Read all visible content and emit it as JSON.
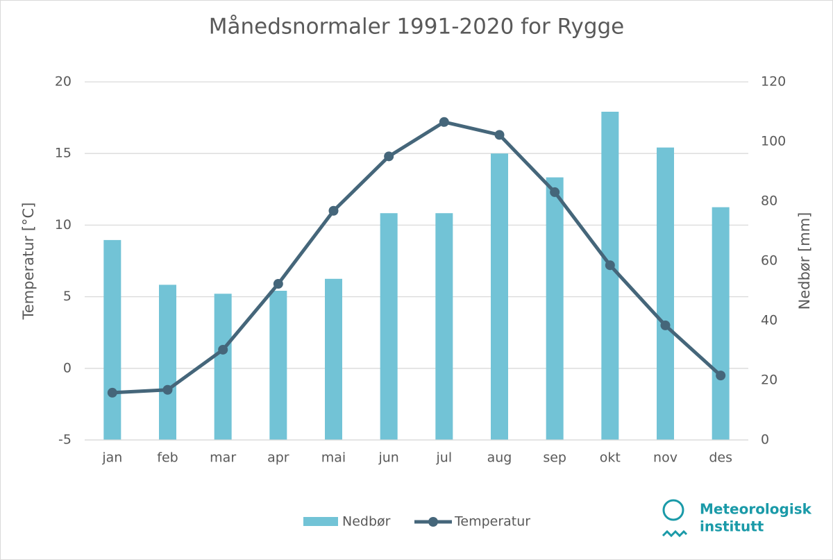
{
  "chart_data": {
    "type": "bar-line",
    "title": "Månedsnormaler 1991-2020 for Rygge",
    "y_label": "Temperatur [°C]",
    "y2_label": "Nedbør [mm]",
    "categories": [
      "jan",
      "feb",
      "mar",
      "apr",
      "mai",
      "jun",
      "jul",
      "aug",
      "sep",
      "okt",
      "nov",
      "des"
    ],
    "series": [
      {
        "name": "Nedbør",
        "type": "bar",
        "axis": "y2",
        "color": "#72c3d6",
        "values": [
          67,
          52,
          49,
          50,
          54,
          76,
          76,
          96,
          88,
          110,
          98,
          78
        ]
      },
      {
        "name": "Temperatur",
        "type": "line",
        "axis": "y",
        "color": "#45667a",
        "values": [
          -1.7,
          -1.5,
          1.3,
          5.9,
          11.0,
          14.8,
          17.2,
          16.3,
          12.3,
          7.2,
          3.0,
          -0.5
        ]
      }
    ],
    "ylim": [
      -5,
      20
    ],
    "yticks": [
      -5,
      0,
      5,
      10,
      15,
      20
    ],
    "y2lim": [
      0,
      120
    ],
    "y2ticks": [
      0,
      20,
      40,
      60,
      80,
      100,
      120
    ],
    "grid": true,
    "legend": "bottom"
  },
  "logo": {
    "line1": "Meteorologisk",
    "line2": "institutt"
  }
}
